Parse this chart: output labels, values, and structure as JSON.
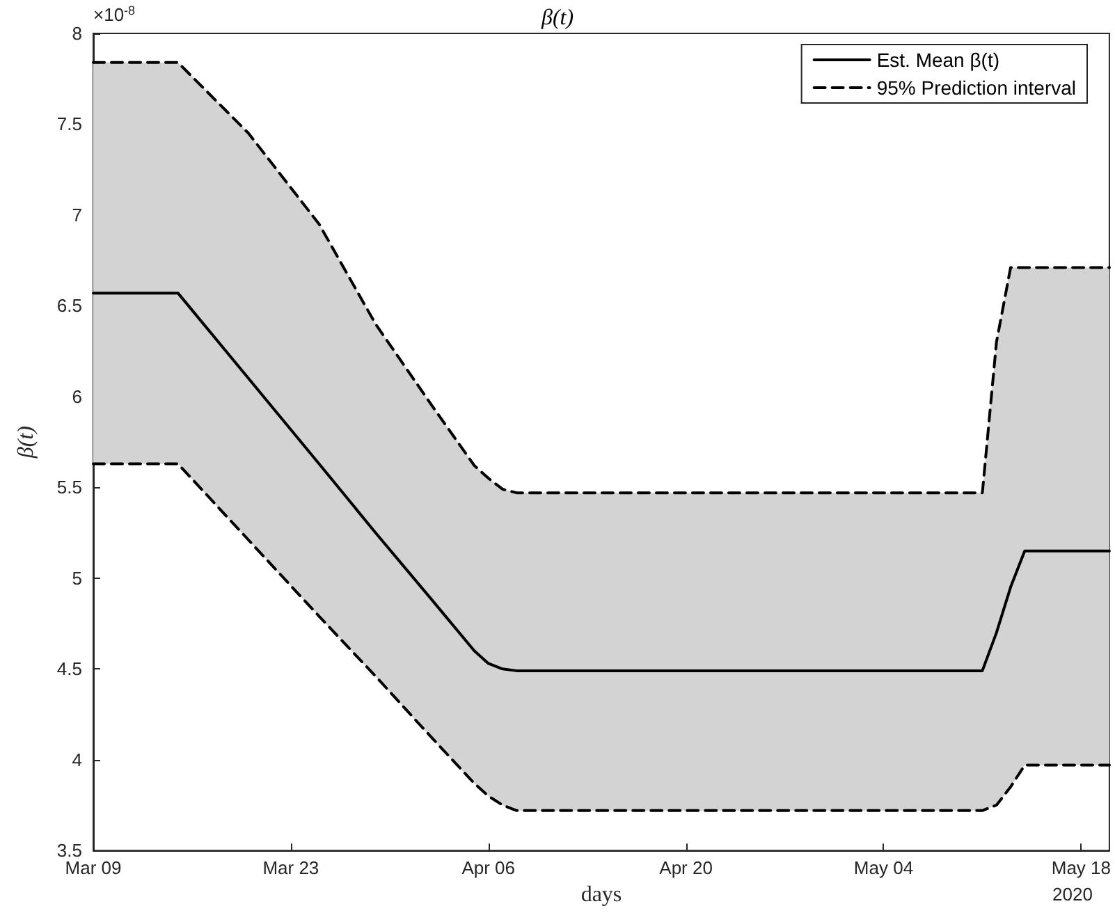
{
  "chart_data": {
    "type": "line",
    "title": "β(t)",
    "xlabel": "days",
    "ylabel": "β(t)",
    "annotations": [
      "×10$^{-8}$",
      "2020"
    ],
    "x": [
      "2020-03-09",
      "2020-03-15",
      "2020-03-20",
      "2020-03-25",
      "2020-03-29",
      "2020-04-02",
      "2020-04-05",
      "2020-04-06",
      "2020-04-07",
      "2020-04-08",
      "2020-05-11",
      "2020-05-12",
      "2020-05-13",
      "2020-05-14",
      "2020-05-15",
      "2020-05-20"
    ],
    "series": [
      {
        "name": "Est. Mean β(t)",
        "color": "#000000",
        "line_style": "solid",
        "values": [
          6.57,
          6.57,
          6.1,
          5.63,
          5.25,
          4.88,
          4.6,
          4.53,
          4.5,
          4.49,
          4.49,
          4.7,
          4.95,
          5.15,
          5.15,
          5.15
        ],
        "lower": [
          5.63,
          5.63,
          5.21,
          4.79,
          4.46,
          4.12,
          3.87,
          3.8,
          3.75,
          3.72,
          3.72,
          3.75,
          3.85,
          3.97,
          3.97,
          3.97
        ],
        "upper": [
          7.84,
          7.84,
          7.45,
          6.95,
          6.4,
          5.95,
          5.62,
          5.55,
          5.49,
          5.47,
          5.47,
          6.3,
          6.71,
          6.71,
          6.71,
          6.71
        ]
      },
      {
        "name": "95% Prediction interval",
        "color": "#000000",
        "line_style": "dashed",
        "values": [
          7.84,
          7.84,
          7.45,
          6.95,
          6.4,
          5.95,
          5.62,
          5.55,
          5.49,
          5.47,
          5.47,
          6.3,
          6.71,
          6.71,
          6.71,
          6.71
        ]
      },
      {
        "color": "#000000",
        "line_style": "dashed",
        "values": [
          5.63,
          5.63,
          5.21,
          4.79,
          4.46,
          4.12,
          3.87,
          3.8,
          3.75,
          3.72,
          3.72,
          3.75,
          3.85,
          3.97,
          3.97,
          3.97
        ]
      }
    ],
    "xlim": [
      "2020-03-09",
      "2020-05-20"
    ],
    "xticks": [
      {
        "value": "2020-03-09",
        "label": "Mar 09"
      },
      {
        "value": "2020-03-23",
        "label": "Mar 23"
      },
      {
        "value": "2020-04-06",
        "label": "Apr 06"
      },
      {
        "value": "2020-04-20",
        "label": "Apr 20"
      },
      {
        "value": "2020-05-04",
        "label": "May 04"
      },
      {
        "value": "2020-05-18",
        "label": "May 18"
      }
    ],
    "ylim": [
      3.5,
      8
    ],
    "yticks": [
      3.5,
      4,
      4.5,
      5,
      5.5,
      6,
      6.5,
      7,
      7.5,
      8
    ],
    "grid": false,
    "legend": "top right",
    "marker": "none"
  }
}
